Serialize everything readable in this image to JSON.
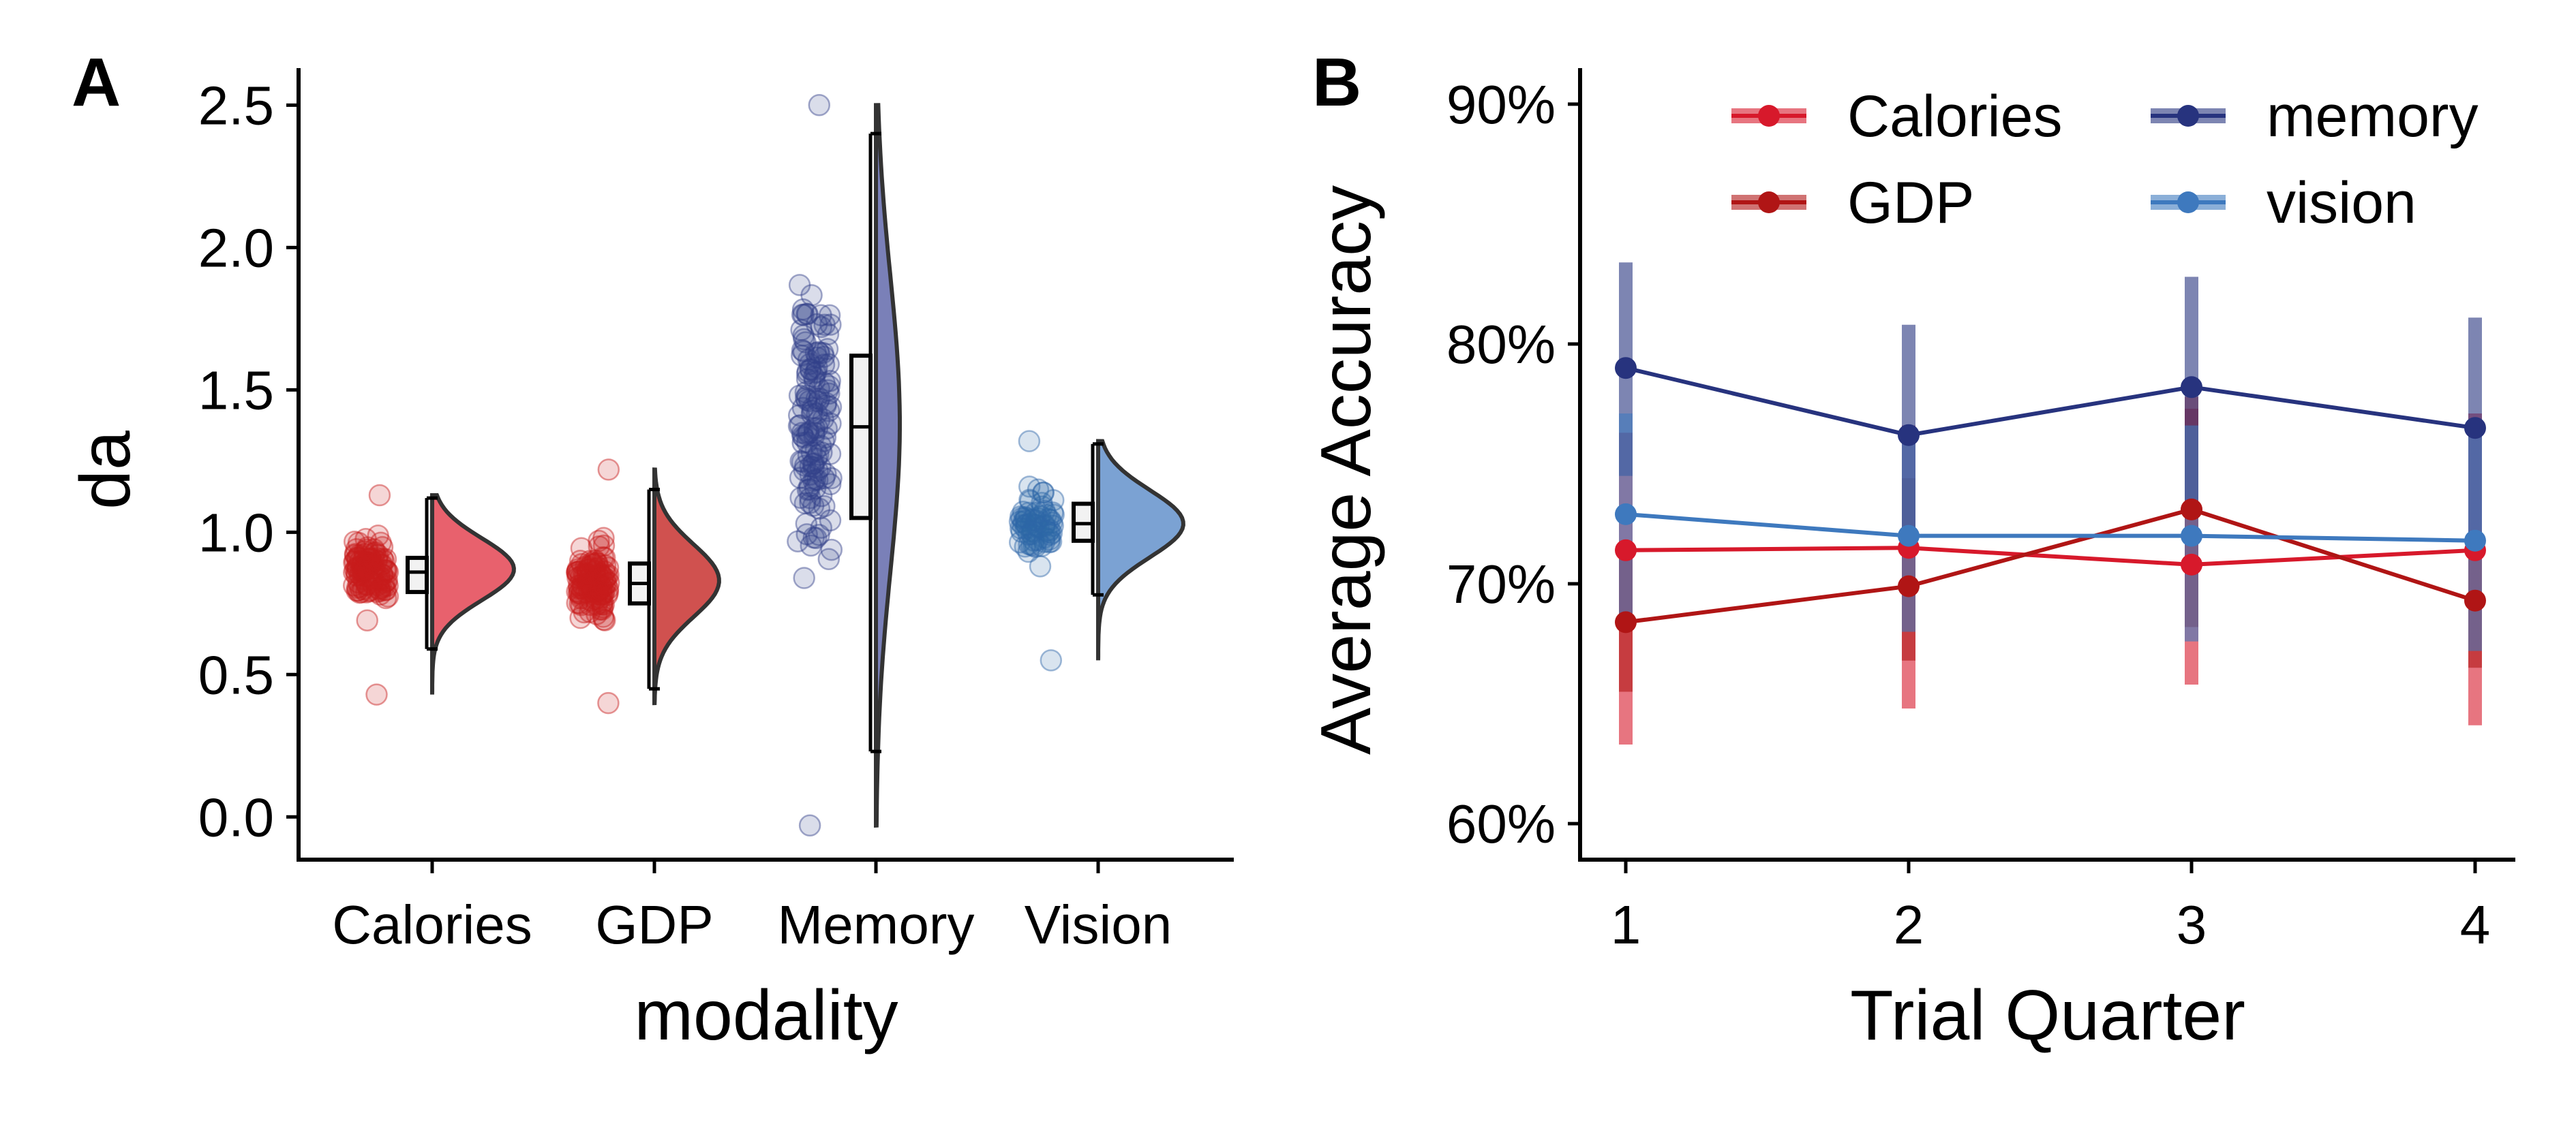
{
  "chart_data": [
    {
      "panel": "A",
      "type": "raincloud",
      "xlabel": "modality",
      "ylabel": "da",
      "ylim": [
        -0.15,
        2.63
      ],
      "yticks": [
        "0.0",
        "0.5",
        "1.0",
        "1.5",
        "2.0",
        "2.5"
      ],
      "categories": [
        "Calories",
        "GDP",
        "Memory",
        "Vision"
      ],
      "colors": {
        "Calories": "#e8616d",
        "GDP": "#d0514f",
        "Memory": "#7a80b8",
        "Vision": "#7ba2d3",
        "points_calories": "#c81d1d",
        "points_gdp": "#c81d1d",
        "points_memory": "#34418a",
        "points_vision": "#2f67a8"
      },
      "groups": [
        {
          "name": "Calories",
          "median": 0.86,
          "q1": 0.79,
          "q3": 0.91,
          "whisker_low": 0.59,
          "whisker_high": 1.12,
          "density_peak": 0.87,
          "min": 0.43,
          "max": 1.13
        },
        {
          "name": "GDP",
          "median": 0.82,
          "q1": 0.75,
          "q3": 0.89,
          "whisker_low": 0.45,
          "whisker_high": 1.15,
          "density_peak": 0.83,
          "min": 0.4,
          "max": 1.22
        },
        {
          "name": "Memory",
          "median": 1.37,
          "q1": 1.05,
          "q3": 1.62,
          "whisker_low": 0.23,
          "whisker_high": 2.4,
          "density_peak": 1.38,
          "min": -0.03,
          "max": 2.5
        },
        {
          "name": "Vision",
          "median": 1.03,
          "q1": 0.97,
          "q3": 1.1,
          "whisker_low": 0.78,
          "whisker_high": 1.31,
          "density_peak": 1.03,
          "min": 0.55,
          "max": 1.32
        }
      ]
    },
    {
      "panel": "B",
      "type": "line",
      "xlabel": "Trial Quarter",
      "ylabel": "Average Accuracy",
      "x": [
        1,
        2,
        3,
        4
      ],
      "ylim": [
        0.585,
        0.915
      ],
      "yticks": [
        "60%",
        "70%",
        "80%",
        "90%"
      ],
      "legend_position": "top-right",
      "series": [
        {
          "name": "Calories",
          "color": "#d7192b",
          "values": [
            0.714,
            0.715,
            0.708,
            0.714
          ],
          "err_low": [
            0.633,
            0.648,
            0.658,
            0.641
          ],
          "err_high": [
            0.763,
            0.766,
            0.773,
            0.771
          ]
        },
        {
          "name": "GDP",
          "color": "#b01515",
          "values": [
            0.684,
            0.699,
            0.731,
            0.693
          ],
          "err_low": [
            0.655,
            0.668,
            0.682,
            0.665
          ],
          "err_high": [
            0.716,
            0.744,
            0.778,
            0.722
          ]
        },
        {
          "name": "memory",
          "color": "#27337e",
          "values": [
            0.79,
            0.762,
            0.782,
            0.765
          ],
          "err_low": [
            0.745,
            0.717,
            0.735,
            0.718
          ],
          "err_high": [
            0.834,
            0.808,
            0.828,
            0.811
          ]
        },
        {
          "name": "vision",
          "color": "#3e79be",
          "values": [
            0.729,
            0.72,
            0.72,
            0.718
          ],
          "err_low": [
            0.684,
            0.68,
            0.676,
            0.672
          ],
          "err_high": [
            0.771,
            0.765,
            0.766,
            0.767
          ]
        }
      ],
      "legend_order": [
        "Calories",
        "GDP",
        "memory",
        "vision"
      ]
    }
  ],
  "panel_labels": {
    "a": "A",
    "b": "B"
  }
}
